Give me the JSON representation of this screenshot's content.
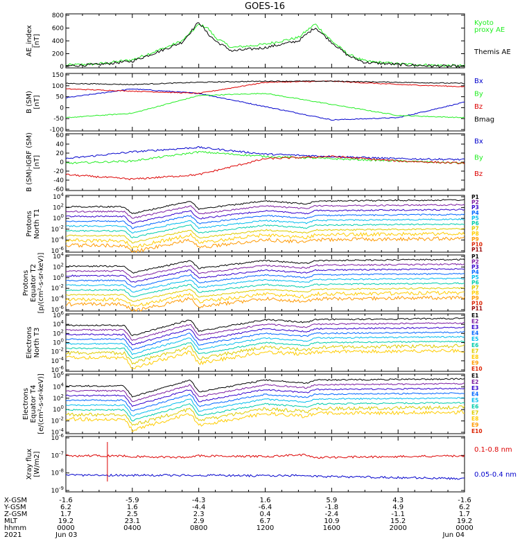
{
  "title": "GOES-16",
  "colors": {
    "black": "#000000",
    "red": "#dd0000",
    "green": "#22ee22",
    "blue": "#0000cc",
    "P": [
      "#000000",
      "#7a1aa0",
      "#3300cc",
      "#0066ff",
      "#00bbee",
      "#00ccaa",
      "#ddcc00",
      "#ffcc00",
      "#ff9900",
      "#dd2200",
      "#990000"
    ],
    "E": [
      "#000000",
      "#7a1aa0",
      "#3300cc",
      "#0066ff",
      "#00bbee",
      "#00ccaa",
      "#ddcc00",
      "#ffcc00",
      "#ff9900",
      "#dd2200"
    ]
  },
  "panels": [
    {
      "id": "ae",
      "ylabel": [
        "AE_index",
        "[nT]"
      ],
      "ticks": [
        "800",
        "600",
        "400",
        "200",
        "0"
      ],
      "ylim": [
        0,
        800
      ],
      "legend": [
        {
          "text": "Kyoto",
          "color": "#22ee22"
        },
        {
          "text": "proxy AE",
          "color": "#22ee22"
        },
        {
          "text": "Themis AE",
          "color": "#000000"
        }
      ]
    },
    {
      "id": "bsm",
      "ylabel": [
        "B (SM)",
        "[nT]"
      ],
      "ticks": [
        "150",
        "100",
        "50",
        "0",
        "-50",
        "-100"
      ],
      "ylim": [
        -110,
        150
      ],
      "legend": [
        {
          "text": "Bx",
          "color": "#0000cc"
        },
        {
          "text": "By",
          "color": "#22ee22"
        },
        {
          "text": "Bz",
          "color": "#dd0000"
        },
        {
          "text": "Bmag",
          "color": "#000000"
        }
      ]
    },
    {
      "id": "bigrf",
      "ylabel": [
        "B (SM)-IGRF (SM)",
        "[nT]"
      ],
      "ticks": [
        "60",
        "40",
        "20",
        "0",
        "-20",
        "-40",
        "-60"
      ],
      "ylim": [
        -65,
        60
      ],
      "legend": [
        {
          "text": "Bx",
          "color": "#0000cc"
        },
        {
          "text": "By",
          "color": "#22ee22"
        },
        {
          "text": "Bz",
          "color": "#dd0000"
        }
      ]
    },
    {
      "id": "pn",
      "ylabel": [
        "Protons",
        "North T1"
      ],
      "ticks": [
        {
          "base": "10",
          "exp": "4"
        },
        {
          "base": "10",
          "exp": "2"
        },
        {
          "base": "10",
          "exp": "0"
        },
        {
          "base": "10",
          "exp": "-2"
        },
        {
          "base": "10",
          "exp": "-4"
        },
        {
          "base": "10",
          "exp": "-6"
        }
      ],
      "channels": [
        "P1",
        "P2",
        "P3",
        "P4",
        "P5",
        "P6",
        "P7",
        "P8",
        "P9",
        "P10",
        "P11"
      ]
    },
    {
      "id": "pe",
      "ylabel": [
        "Protons",
        "Equator T2",
        "[p/(cm²-s-sr-keV)]"
      ],
      "ticks": [
        {
          "base": "10",
          "exp": "4"
        },
        {
          "base": "10",
          "exp": "2"
        },
        {
          "base": "10",
          "exp": "0"
        },
        {
          "base": "10",
          "exp": "-2"
        },
        {
          "base": "10",
          "exp": "-4"
        },
        {
          "base": "10",
          "exp": "-6"
        }
      ],
      "channels": [
        "P1",
        "P2",
        "P3",
        "P4",
        "P5",
        "P6",
        "P7",
        "P8",
        "P9",
        "P10",
        "P11"
      ]
    },
    {
      "id": "en",
      "ylabel": [
        "Electrons",
        "North T3"
      ],
      "ticks": [
        {
          "base": "10",
          "exp": "6"
        },
        {
          "base": "10",
          "exp": "4"
        },
        {
          "base": "10",
          "exp": "2"
        },
        {
          "base": "10",
          "exp": "0"
        },
        {
          "base": "10",
          "exp": "-2"
        },
        {
          "base": "10",
          "exp": "-4"
        },
        {
          "base": "10",
          "exp": "-6"
        }
      ],
      "channels": [
        "E1",
        "E2",
        "E3",
        "E4",
        "E5",
        "E6",
        "E7",
        "E8",
        "E9",
        "E10"
      ]
    },
    {
      "id": "ee",
      "ylabel": [
        "Electrons",
        "Equator T4",
        "[e/(cm²-s-sr-keV)]"
      ],
      "ticks": [
        {
          "base": "10",
          "exp": "6"
        },
        {
          "base": "10",
          "exp": "4"
        },
        {
          "base": "10",
          "exp": "2"
        },
        {
          "base": "10",
          "exp": "0"
        },
        {
          "base": "10",
          "exp": "-2"
        },
        {
          "base": "10",
          "exp": "-4"
        }
      ],
      "channels": [
        "E1",
        "E2",
        "E3",
        "E4",
        "E5",
        "E6",
        "E7",
        "E8",
        "E9",
        "E10"
      ]
    },
    {
      "id": "xray",
      "ylabel": [
        "Xray flux",
        "[W/m2]"
      ],
      "ticks": [
        {
          "base": "10",
          "exp": "-6"
        },
        {
          "base": "10",
          "exp": "-7"
        },
        {
          "base": "10",
          "exp": "-8"
        },
        {
          "base": "10",
          "exp": "-9"
        }
      ],
      "legend": [
        {
          "text": "0.1-0.8 nm",
          "color": "#dd0000"
        },
        {
          "text": "0.05-0.4 nm",
          "color": "#0000cc"
        }
      ]
    }
  ],
  "ephemeris": {
    "row_labels": [
      "X-GSM",
      "Y-GSM",
      "Z-GSM",
      "MLT",
      "hhmm",
      "2021"
    ],
    "columns": [
      {
        "values": [
          "-1.6",
          "6.2",
          "1.7",
          "19.2",
          "0000",
          "Jun 03"
        ]
      },
      {
        "values": [
          "-5.9",
          "1.6",
          "2.5",
          "23.1",
          "0400",
          ""
        ]
      },
      {
        "values": [
          "-4.3",
          "-4.4",
          "2.3",
          "2.9",
          "0800",
          ""
        ]
      },
      {
        "values": [
          "1.6",
          "-6.4",
          "0.4",
          "6.7",
          "1200",
          ""
        ]
      },
      {
        "values": [
          "5.9",
          "-1.8",
          "-2.4",
          "10.9",
          "1600",
          ""
        ]
      },
      {
        "values": [
          "4.3",
          "4.9",
          "-1.1",
          "15.2",
          "2000",
          ""
        ]
      },
      {
        "values": [
          "-1.6",
          "6.2",
          "1.7",
          "19.2",
          "0000",
          "Jun 04"
        ]
      }
    ]
  },
  "chart_data": [
    {
      "type": "line",
      "x": [
        0,
        2,
        4,
        6,
        7,
        8,
        8.5,
        9,
        10,
        12,
        14,
        15,
        16,
        17,
        18,
        20,
        22,
        24
      ],
      "xlabel": "hhmm",
      "ylim": [
        0,
        800
      ],
      "series": [
        {
          "name": "Kyoto",
          "values": [
            40,
            60,
            120,
            300,
            400,
            640,
            600,
            450,
            300,
            350,
            450,
            650,
            400,
            200,
            100,
            60,
            40,
            30
          ]
        },
        {
          "name": "Themis AE",
          "values": [
            30,
            50,
            100,
            280,
            380,
            680,
            520,
            400,
            250,
            300,
            400,
            600,
            380,
            180,
            80,
            50,
            30,
            20
          ]
        }
      ]
    },
    {
      "type": "line",
      "x": [
        0,
        4,
        8,
        12,
        16,
        20,
        24
      ],
      "ylim": [
        -110,
        150
      ],
      "series": [
        {
          "name": "Bx",
          "values": [
            40,
            80,
            60,
            0,
            -60,
            -50,
            20
          ]
        },
        {
          "name": "By",
          "values": [
            -50,
            -30,
            50,
            60,
            10,
            -40,
            -50
          ]
        },
        {
          "name": "Bz",
          "values": [
            80,
            70,
            60,
            110,
            115,
            100,
            90
          ]
        },
        {
          "name": "Bmag",
          "values": [
            105,
            100,
            110,
            115,
            115,
            110,
            105
          ]
        }
      ]
    },
    {
      "type": "line",
      "x": [
        0,
        4,
        8,
        12,
        16,
        20,
        24
      ],
      "ylim": [
        -65,
        60
      ],
      "series": [
        {
          "name": "Bx",
          "values": [
            5,
            20,
            30,
            15,
            10,
            5,
            3
          ]
        },
        {
          "name": "By",
          "values": [
            -5,
            0,
            20,
            10,
            5,
            0,
            -5
          ]
        },
        {
          "name": "Bz",
          "values": [
            -30,
            -40,
            -30,
            5,
            10,
            0,
            -5
          ]
        }
      ]
    }
  ]
}
